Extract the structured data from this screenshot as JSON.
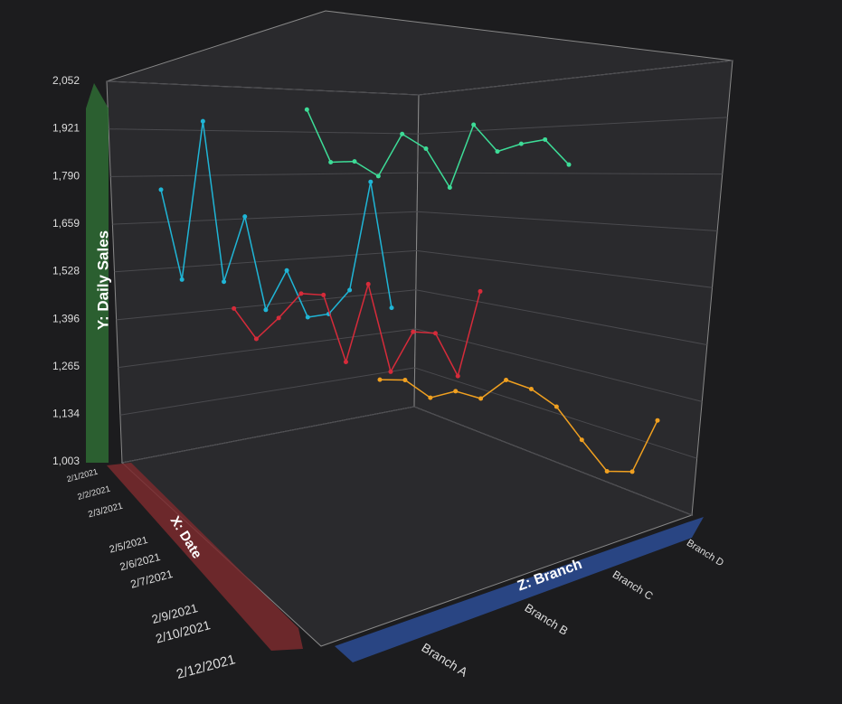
{
  "chart_data": {
    "type": "line3d",
    "y_axis_title": "Y: Daily Sales",
    "x_axis_title": "X: Date",
    "z_axis_title": "Z: Branch",
    "x": [
      "2/1/2021",
      "2/2/2021",
      "2/3/2021",
      null,
      "2/5/2021",
      "2/6/2021",
      "2/7/2021",
      null,
      "2/9/2021",
      "2/10/2021",
      null,
      "2/12/2021"
    ],
    "z_categories": [
      "Branch A",
      "Branch B",
      "Branch C",
      "Branch D"
    ],
    "ylim": [
      1003,
      2052
    ],
    "yticks": [
      {
        "value": 1003,
        "label": "1,003"
      },
      {
        "value": 1134,
        "label": "1,134"
      },
      {
        "value": 1265,
        "label": "1,265"
      },
      {
        "value": 1396,
        "label": "1,396"
      },
      {
        "value": 1528,
        "label": "1,528"
      },
      {
        "value": 1659,
        "label": "1,659"
      },
      {
        "value": 1790,
        "label": "1,790"
      },
      {
        "value": 1921,
        "label": "1,921"
      },
      {
        "value": 2052,
        "label": "2,052"
      }
    ],
    "grid": true,
    "series": [
      {
        "name": "Branch A",
        "color": "#1fb5d6",
        "values": [
          1790,
          1530,
          1990,
          1525,
          1715,
          1445,
          1560,
          1425,
          1435,
          1505,
          1820,
          1455
        ]
      },
      {
        "name": "Branch B",
        "color": "#d62b3a",
        "values": [
          1454,
          1370,
          1435,
          1510,
          1510,
          1320,
          1550,
          1300,
          1420,
          1420,
          1300,
          1550
        ]
      },
      {
        "name": "Branch C",
        "color": "#3ddc97",
        "values": [
          2040,
          1895,
          1905,
          1870,
          2000,
          1965,
          1860,
          2050,
          1980,
          2010,
          2030,
          1965
        ]
      },
      {
        "name": "Branch D",
        "color": "#f0a020",
        "values": [
          1265,
          1275,
          1235,
          1265,
          1255,
          1320,
          1305,
          1265,
          1180,
          1100,
          1110,
          1270
        ]
      }
    ]
  }
}
